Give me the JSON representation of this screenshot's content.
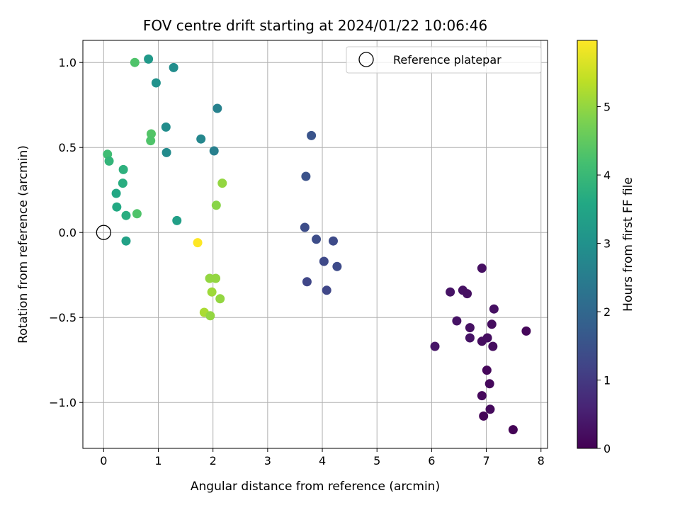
{
  "chart_data": {
    "type": "scatter",
    "title": "FOV centre drift starting at 2024/01/22 10:06:46",
    "xlabel": "Angular distance from reference (arcmin)",
    "ylabel": "Rotation from reference (arcmin)",
    "xlim": [
      -0.38,
      8.12
    ],
    "ylim": [
      -1.27,
      1.13
    ],
    "x_ticks": [
      0,
      1,
      2,
      3,
      4,
      5,
      6,
      7,
      8
    ],
    "x_tick_labels": [
      "0",
      "1",
      "2",
      "3",
      "4",
      "5",
      "6",
      "7",
      "8"
    ],
    "y_ticks": [
      -1.0,
      -0.5,
      0.0,
      0.5,
      1.0
    ],
    "y_tick_labels": [
      "−1.0",
      "−0.5",
      "0.0",
      "0.5",
      "1.0"
    ],
    "grid": true,
    "legend": {
      "placement": "top-right",
      "entries": [
        "Reference platepar"
      ]
    },
    "reference_point": {
      "x": 0,
      "y": 0,
      "marker": "hollow-circle"
    },
    "colorbar": {
      "label": "Hours from first FF file",
      "colormap": "viridis",
      "range": [
        0,
        5.97
      ],
      "ticks": [
        0,
        1,
        2,
        3,
        4,
        5
      ],
      "tick_labels": [
        "0",
        "1",
        "2",
        "3",
        "4",
        "5"
      ]
    },
    "series": [
      {
        "points": [
          {
            "x": 6.06,
            "y": -0.67,
            "c": 0.35
          },
          {
            "x": 6.34,
            "y": -0.35,
            "c": 0.3
          },
          {
            "x": 6.46,
            "y": -0.52,
            "c": 0.3
          },
          {
            "x": 6.57,
            "y": -0.34,
            "c": 0.28
          },
          {
            "x": 6.65,
            "y": -0.36,
            "c": 0.25
          },
          {
            "x": 6.7,
            "y": -0.56,
            "c": 0.28
          },
          {
            "x": 6.7,
            "y": -0.62,
            "c": 0.3
          },
          {
            "x": 6.92,
            "y": -0.21,
            "c": 0.25
          },
          {
            "x": 6.92,
            "y": -0.64,
            "c": 0.2
          },
          {
            "x": 6.92,
            "y": -0.96,
            "c": 0.12
          },
          {
            "x": 6.95,
            "y": -1.08,
            "c": 0.06
          },
          {
            "x": 7.01,
            "y": -0.81,
            "c": 0.1
          },
          {
            "x": 7.02,
            "y": -0.62,
            "c": 0.22
          },
          {
            "x": 7.06,
            "y": -0.89,
            "c": 0.12
          },
          {
            "x": 7.07,
            "y": -1.04,
            "c": 0.15
          },
          {
            "x": 7.1,
            "y": -0.54,
            "c": 0.18
          },
          {
            "x": 7.12,
            "y": -0.67,
            "c": 0.2
          },
          {
            "x": 7.14,
            "y": -0.45,
            "c": 0.25
          },
          {
            "x": 7.49,
            "y": -1.16,
            "c": 0.04
          },
          {
            "x": 7.73,
            "y": -0.58,
            "c": 0.1
          },
          {
            "x": 3.8,
            "y": 0.57,
            "c": 1.55
          },
          {
            "x": 3.7,
            "y": 0.33,
            "c": 1.5
          },
          {
            "x": 3.68,
            "y": 0.03,
            "c": 1.4
          },
          {
            "x": 3.89,
            "y": -0.04,
            "c": 1.4
          },
          {
            "x": 4.2,
            "y": -0.05,
            "c": 1.35
          },
          {
            "x": 4.03,
            "y": -0.17,
            "c": 1.3
          },
          {
            "x": 4.27,
            "y": -0.2,
            "c": 1.35
          },
          {
            "x": 3.72,
            "y": -0.29,
            "c": 1.25
          },
          {
            "x": 4.08,
            "y": -0.34,
            "c": 1.25
          },
          {
            "x": 0.82,
            "y": 1.02,
            "c": 3.2
          },
          {
            "x": 0.57,
            "y": 1.0,
            "c": 4.3
          },
          {
            "x": 1.28,
            "y": 0.97,
            "c": 2.9
          },
          {
            "x": 0.96,
            "y": 0.88,
            "c": 3.0
          },
          {
            "x": 2.08,
            "y": 0.73,
            "c": 2.6
          },
          {
            "x": 1.14,
            "y": 0.62,
            "c": 2.9
          },
          {
            "x": 0.87,
            "y": 0.58,
            "c": 4.35
          },
          {
            "x": 1.78,
            "y": 0.55,
            "c": 2.75
          },
          {
            "x": 0.86,
            "y": 0.54,
            "c": 4.3
          },
          {
            "x": 1.15,
            "y": 0.47,
            "c": 2.85
          },
          {
            "x": 2.02,
            "y": 0.48,
            "c": 2.55
          },
          {
            "x": 0.07,
            "y": 0.46,
            "c": 4.1
          },
          {
            "x": 0.1,
            "y": 0.42,
            "c": 3.9
          },
          {
            "x": 0.36,
            "y": 0.37,
            "c": 3.8
          },
          {
            "x": 0.35,
            "y": 0.29,
            "c": 3.7
          },
          {
            "x": 2.17,
            "y": 0.29,
            "c": 5.0
          },
          {
            "x": 0.23,
            "y": 0.23,
            "c": 3.55
          },
          {
            "x": 2.06,
            "y": 0.16,
            "c": 4.9
          },
          {
            "x": 0.24,
            "y": 0.15,
            "c": 3.6
          },
          {
            "x": 0.61,
            "y": 0.11,
            "c": 4.3
          },
          {
            "x": 0.41,
            "y": 0.1,
            "c": 3.7
          },
          {
            "x": 1.34,
            "y": 0.07,
            "c": 3.35
          },
          {
            "x": 0.41,
            "y": -0.05,
            "c": 3.4
          },
          {
            "x": 1.72,
            "y": -0.06,
            "c": 5.97
          },
          {
            "x": 1.94,
            "y": -0.27,
            "c": 5.0
          },
          {
            "x": 2.05,
            "y": -0.27,
            "c": 5.0
          },
          {
            "x": 1.98,
            "y": -0.35,
            "c": 5.1
          },
          {
            "x": 2.13,
            "y": -0.39,
            "c": 5.0
          },
          {
            "x": 1.84,
            "y": -0.47,
            "c": 5.2
          },
          {
            "x": 1.95,
            "y": -0.49,
            "c": 5.0
          }
        ]
      }
    ]
  }
}
